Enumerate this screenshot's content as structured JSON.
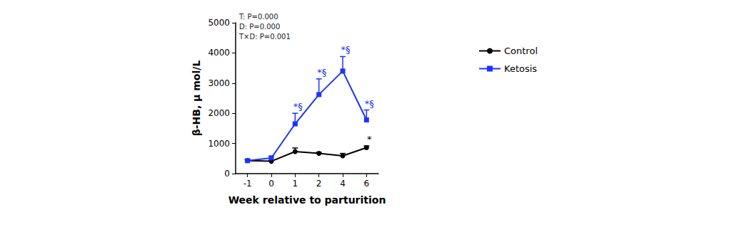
{
  "chart_data": {
    "type": "line",
    "x_label": "Week relative to parturition",
    "y_label": "β-HB, μ mol/L",
    "annotations": [
      "T: P=0.000",
      "D: P=0.000",
      "T×D: P=0.001"
    ],
    "categories": [
      -1,
      0,
      1,
      2,
      4,
      6
    ],
    "ylim": [
      0,
      5000
    ],
    "yticks": [
      0,
      1000,
      2000,
      3000,
      4000,
      5000
    ],
    "grid": false,
    "legend": "right",
    "series": [
      {
        "name": "Control",
        "color": "#000000",
        "marker": "circle",
        "line_style": "solid",
        "values": [
          430,
          410,
          730,
          670,
          590,
          860
        ],
        "errors": [
          30,
          30,
          120,
          40,
          80,
          60
        ],
        "point_labels": [
          null,
          null,
          null,
          null,
          null,
          "*"
        ]
      },
      {
        "name": "Ketosis",
        "color": "#1a33ff",
        "marker": "square",
        "line_style": "solid",
        "values": [
          430,
          520,
          1650,
          2620,
          3400,
          1780
        ],
        "errors": [
          30,
          60,
          350,
          520,
          480,
          330
        ],
        "point_labels": [
          null,
          null,
          "*§",
          "*§",
          "*§",
          "*§"
        ]
      }
    ]
  }
}
